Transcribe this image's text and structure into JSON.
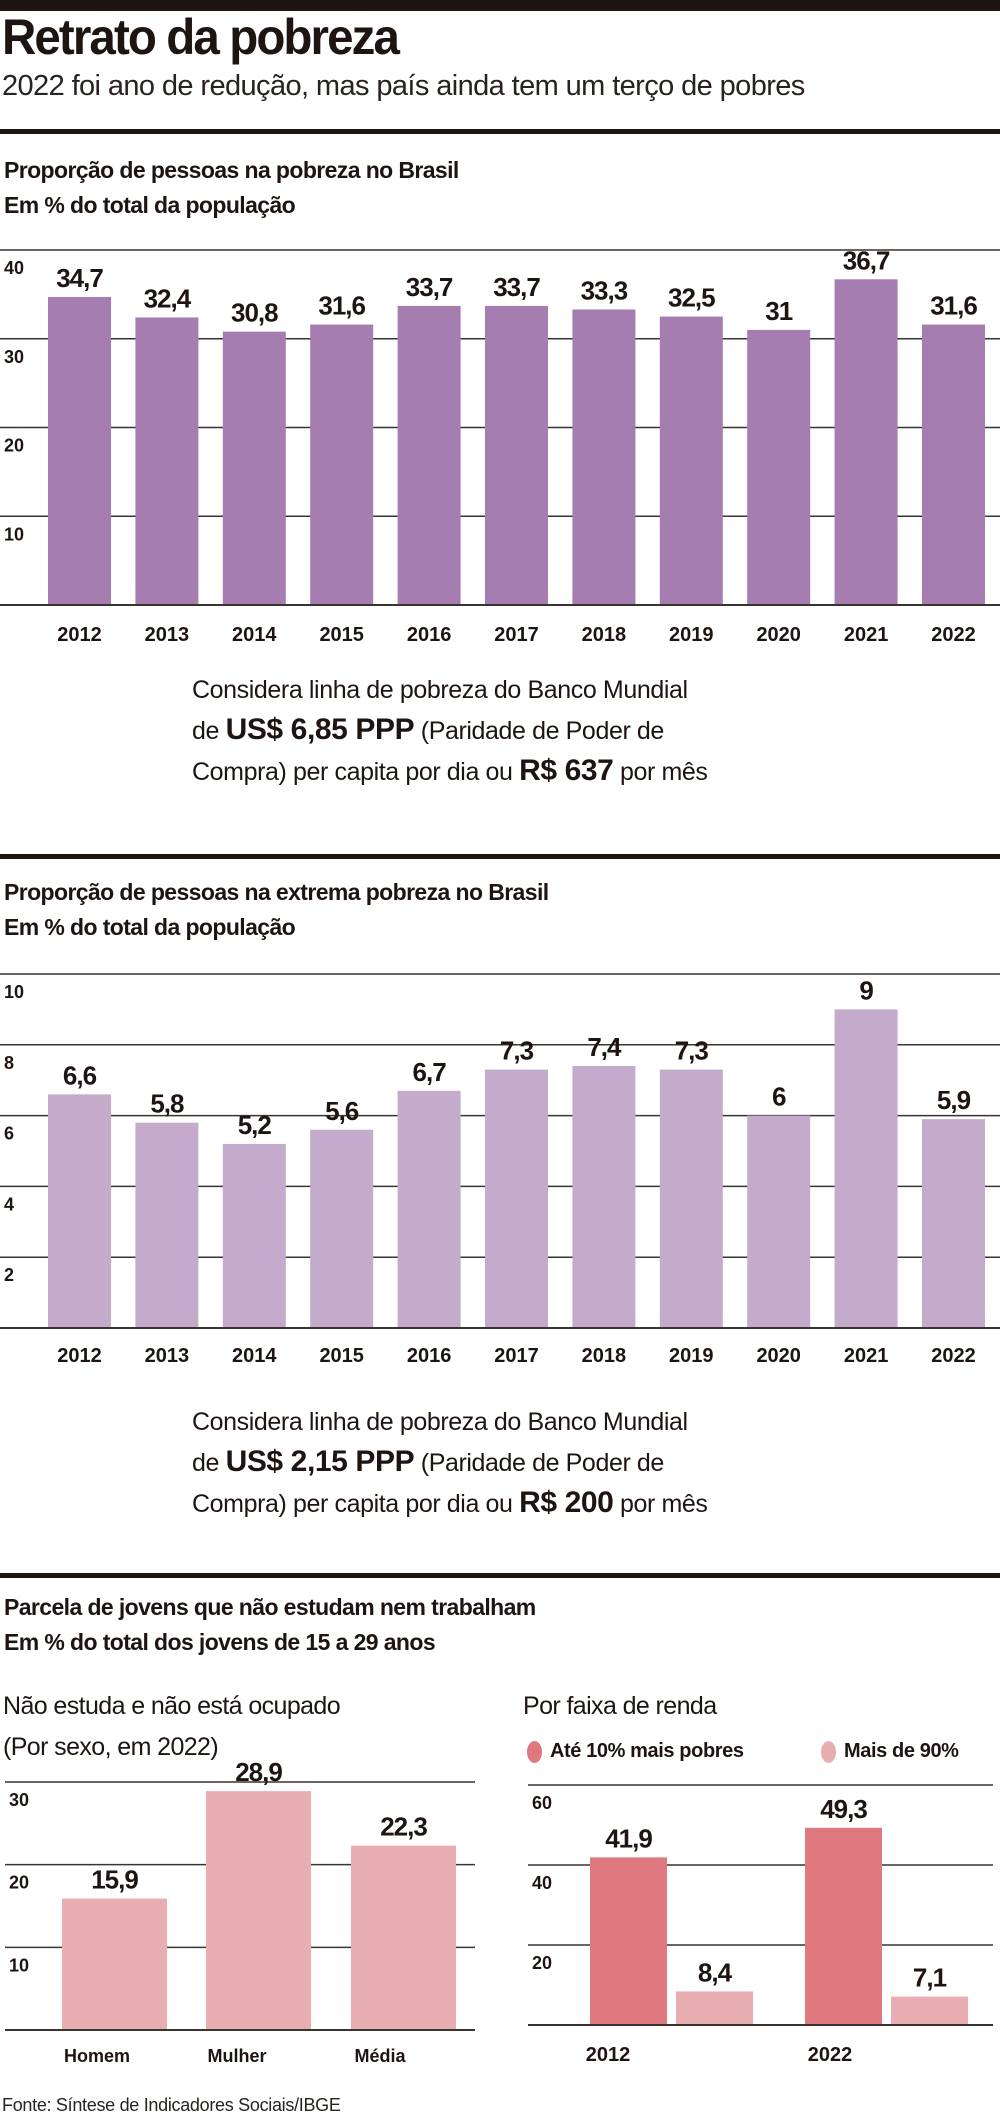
{
  "header": {
    "title": "Retrato da pobreza",
    "subtitle": "2022 foi ano de redução, mas país ainda tem um terço de pobres"
  },
  "section1": {
    "title": "Proporção de pessoas na pobreza no Brasil",
    "unit": "Em % do total da população",
    "note": {
      "line1": "Considera linha de pobreza do Banco Mundial",
      "line2_pre": "de ",
      "line2_bold": "US$ 6,85 PPP",
      "line2_post": " (Paridade de Poder de",
      "line3_pre": "Compra) per capita por dia ou ",
      "line3_bold": "R$ 637",
      "line3_post": " por mês"
    }
  },
  "section2": {
    "title": "Proporção de pessoas na extrema pobreza no Brasil",
    "unit": "Em % do total da população",
    "note": {
      "line1": "Considera linha de pobreza do Banco Mundial",
      "line2_pre": "de ",
      "line2_bold": "US$ 2,15 PPP",
      "line2_post": " (Paridade de Poder de",
      "line3_pre": "Compra) per capita por dia ou ",
      "line3_bold": "R$ 200",
      "line3_post": " por mês"
    }
  },
  "section3": {
    "title": "Parcela de jovens que não estudam nem trabalham",
    "unit": "Em % do total dos jovens de 15 a 29 anos",
    "left_title": "Não estuda e não está ocupado",
    "left_subtitle": "(Por sexo, em 2022)",
    "right_title": "Por faixa de renda",
    "legend": [
      {
        "label": "Até 10% mais pobres",
        "color": "#e07880"
      },
      {
        "label": "Mais de 90%",
        "color": "#e8aeb1"
      }
    ]
  },
  "source": "Fonte: Síntese de Indicadores Sociais/IBGE",
  "chart_data": [
    {
      "type": "bar",
      "title": "Proporção de pessoas na pobreza no Brasil",
      "ylabel": "Em % do total da população",
      "categories": [
        "2012",
        "2013",
        "2014",
        "2015",
        "2016",
        "2017",
        "2018",
        "2019",
        "2020",
        "2021",
        "2022"
      ],
      "values": [
        34.7,
        32.4,
        30.8,
        31.6,
        33.7,
        33.7,
        33.3,
        32.5,
        31,
        36.7,
        31.6
      ],
      "labels": [
        "34,7",
        "32,4",
        "30,8",
        "31,6",
        "33,7",
        "33,7",
        "33,3",
        "32,5",
        "31",
        "36,7",
        "31,6"
      ],
      "ylim": [
        0,
        40
      ],
      "yticks": [
        10,
        20,
        30,
        40
      ],
      "grid": true,
      "color": "#a67db0"
    },
    {
      "type": "bar",
      "title": "Proporção de pessoas na extrema pobreza no Brasil",
      "ylabel": "Em % do total da população",
      "categories": [
        "2012",
        "2013",
        "2014",
        "2015",
        "2016",
        "2017",
        "2018",
        "2019",
        "2020",
        "2021",
        "2022"
      ],
      "values": [
        6.6,
        5.8,
        5.2,
        5.6,
        6.7,
        7.3,
        7.4,
        7.3,
        6,
        9,
        5.9
      ],
      "labels": [
        "6,6",
        "5,8",
        "5,2",
        "5,6",
        "6,7",
        "7,3",
        "7,4",
        "7,3",
        "6",
        "9",
        "5,9"
      ],
      "ylim": [
        0,
        10
      ],
      "yticks": [
        2,
        4,
        6,
        8,
        10
      ],
      "grid": true,
      "color": "#c4abcc"
    },
    {
      "type": "bar",
      "title": "Não estuda e não está ocupado",
      "subtitle": "(Por sexo, em 2022)",
      "categories": [
        "Homem",
        "Mulher",
        "Média"
      ],
      "values": [
        15.9,
        28.9,
        22.3
      ],
      "labels": [
        "15,9",
        "28,9",
        "22,3"
      ],
      "ylim": [
        0,
        30
      ],
      "yticks": [
        10,
        20,
        30
      ],
      "grid": true,
      "color": "#e8aeb1"
    },
    {
      "type": "bar",
      "title": "Por faixa de renda",
      "categories": [
        "2012",
        "2022"
      ],
      "series": [
        {
          "name": "Até 10% mais pobres",
          "values": [
            41.9,
            49.3
          ],
          "labels": [
            "41,9",
            "49,3"
          ],
          "color": "#e07880"
        },
        {
          "name": "Mais de 90%",
          "values": [
            8.4,
            7.1
          ],
          "labels": [
            "8,4",
            "7,1"
          ],
          "color": "#e8aeb1"
        }
      ],
      "ylim": [
        0,
        60
      ],
      "yticks": [
        20,
        40,
        60
      ],
      "grid": true,
      "legend": "top"
    }
  ]
}
